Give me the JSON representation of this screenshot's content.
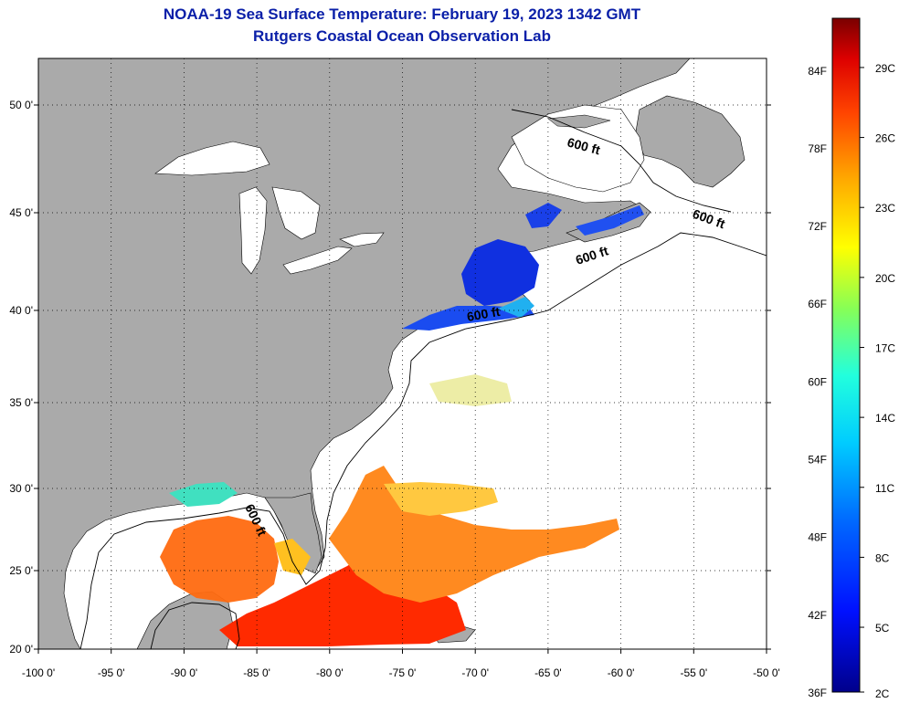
{
  "title": {
    "line1": "NOAA-19 Sea Surface Temperature:  February 19, 2023 1342 GMT",
    "line2": "Rutgers Coastal Ocean Observation Lab"
  },
  "map": {
    "longitude_labels": [
      "-100 0'",
      "-95 0'",
      "-90 0'",
      "-85 0'",
      "-80 0'",
      "-75 0'",
      "-70 0'",
      "-65 0'",
      "-60 0'",
      "-55 0'",
      "-50 0'"
    ],
    "latitude_labels": [
      "50 0'",
      "45 0'",
      "40 0'",
      "35 0'",
      "30 0'",
      "25 0'",
      "20 0'"
    ],
    "isobath_labels": [
      "600 ft",
      "600 ft",
      "600 ft",
      "600 ft",
      "600 ft"
    ],
    "land_color": "#aaaaaa",
    "water_color": "#ffffff"
  },
  "colorbar": {
    "fahrenheit_labels": [
      "84F",
      "78F",
      "72F",
      "66F",
      "60F",
      "54F",
      "48F",
      "42F",
      "36F"
    ],
    "celsius_labels": [
      "29C",
      "26C",
      "23C",
      "20C",
      "17C",
      "14C",
      "11C",
      "8C",
      "5C",
      "2C"
    ]
  }
}
